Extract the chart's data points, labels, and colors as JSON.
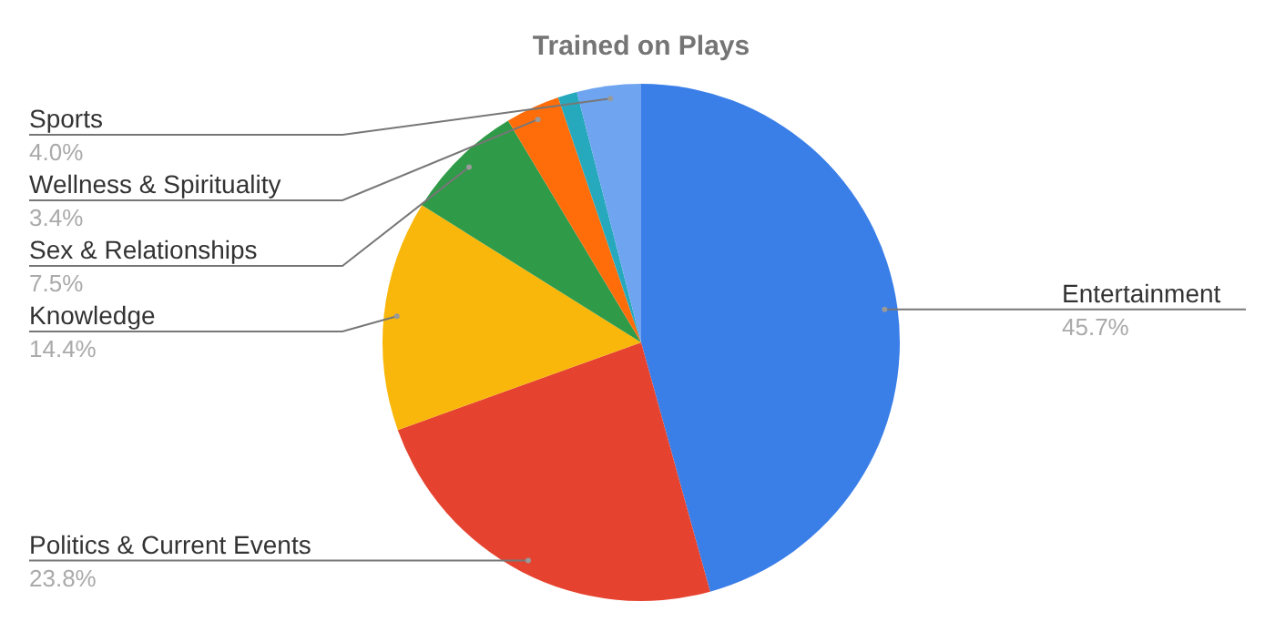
{
  "chart_data": {
    "type": "pie",
    "title": "Trained on Plays",
    "categories": [
      "Entertainment",
      "Politics & Current Events",
      "Knowledge",
      "Sex & Relationships",
      "Wellness & Spirituality",
      null,
      "Sports"
    ],
    "values": [
      45.7,
      23.8,
      14.4,
      7.5,
      3.4,
      1.2,
      4.0
    ],
    "value_labels": [
      "45.7%",
      "23.8%",
      "14.4%",
      "7.5%",
      "3.4%",
      null,
      "4.0%"
    ],
    "colors": [
      "#3a7ee8",
      "#e5432f",
      "#f8b70a",
      "#2f9a48",
      "#ff6d0b",
      "#26a9bc",
      "#6ea4f0"
    ]
  }
}
